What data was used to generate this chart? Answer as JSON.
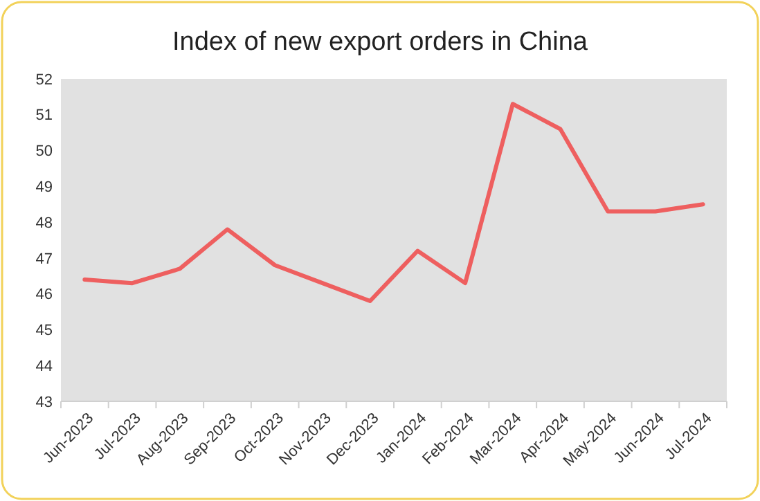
{
  "chart_data": {
    "type": "line",
    "title": "Index of new export orders in China",
    "categories": [
      "Jun-2023",
      "Jul-2023",
      "Aug-2023",
      "Sep-2023",
      "Oct-2023",
      "Nov-2023",
      "Dec-2023",
      "Jan-2024",
      "Feb-2024",
      "Mar-2024",
      "Apr-2024",
      "May-2024",
      "Jun-2024",
      "Jul-2024"
    ],
    "series": [
      {
        "color": "#ee5f5f",
        "values": [
          46.4,
          46.3,
          46.7,
          47.8,
          46.8,
          46.3,
          45.8,
          47.2,
          46.3,
          51.3,
          50.6,
          48.3,
          48.3,
          48.5
        ]
      }
    ],
    "ylim": [
      43,
      52
    ],
    "yticks": [
      43,
      44,
      45,
      46,
      47,
      48,
      49,
      50,
      51,
      52
    ],
    "grid": false,
    "marker": "none",
    "line_style": "solid"
  }
}
